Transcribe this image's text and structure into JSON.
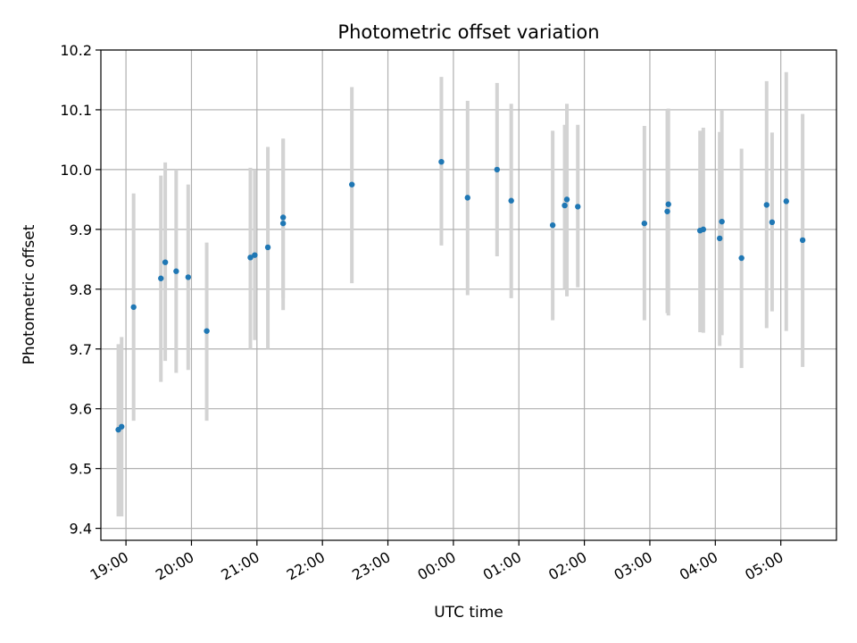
{
  "chart_data": {
    "type": "scatter",
    "title": "Photometric offset variation",
    "xlabel": "UTC time",
    "ylabel": "Photometric offset",
    "ylim": [
      9.38,
      10.2
    ],
    "xlim": [
      "18:37",
      "05:51"
    ],
    "yticks": [
      "9.4",
      "9.5",
      "9.6",
      "9.7",
      "9.8",
      "9.9",
      "10.0",
      "10.1",
      "10.2"
    ],
    "xticks": [
      "19:00",
      "20:00",
      "21:00",
      "22:00",
      "23:00",
      "00:00",
      "01:00",
      "02:00",
      "03:00",
      "04:00",
      "05:00"
    ],
    "grid": true,
    "marker_color": "#1f77b4",
    "errorbar_color": "#d3d3d3",
    "points": [
      {
        "x": "18:53",
        "y": 9.565,
        "ylow": 9.42,
        "yhigh": 9.708
      },
      {
        "x": "18:56",
        "y": 9.57,
        "ylow": 9.42,
        "yhigh": 9.72
      },
      {
        "x": "19:07",
        "y": 9.77,
        "ylow": 9.58,
        "yhigh": 9.96
      },
      {
        "x": "19:32",
        "y": 9.818,
        "ylow": 9.645,
        "yhigh": 9.99
      },
      {
        "x": "19:36",
        "y": 9.845,
        "ylow": 9.68,
        "yhigh": 10.012
      },
      {
        "x": "19:46",
        "y": 9.83,
        "ylow": 9.66,
        "yhigh": 10.0
      },
      {
        "x": "19:57",
        "y": 9.82,
        "ylow": 9.665,
        "yhigh": 9.975
      },
      {
        "x": "20:14",
        "y": 9.73,
        "ylow": 9.58,
        "yhigh": 9.878
      },
      {
        "x": "20:54",
        "y": 9.853,
        "ylow": 9.7,
        "yhigh": 10.003
      },
      {
        "x": "20:58",
        "y": 9.857,
        "ylow": 9.715,
        "yhigh": 10.0
      },
      {
        "x": "21:10",
        "y": 9.87,
        "ylow": 9.7,
        "yhigh": 10.038
      },
      {
        "x": "21:24",
        "y": 9.91,
        "ylow": 9.765,
        "yhigh": 10.05
      },
      {
        "x": "21:24",
        "y": 9.92,
        "ylow": 9.785,
        "yhigh": 10.052
      },
      {
        "x": "22:27",
        "y": 9.975,
        "ylow": 9.81,
        "yhigh": 10.138
      },
      {
        "x": "23:49",
        "y": 10.013,
        "ylow": 9.873,
        "yhigh": 10.155
      },
      {
        "x": "00:13",
        "y": 9.953,
        "ylow": 9.79,
        "yhigh": 10.115
      },
      {
        "x": "00:40",
        "y": 10.0,
        "ylow": 9.855,
        "yhigh": 10.145
      },
      {
        "x": "00:53",
        "y": 9.948,
        "ylow": 9.785,
        "yhigh": 10.11
      },
      {
        "x": "01:31",
        "y": 9.907,
        "ylow": 9.748,
        "yhigh": 10.065
      },
      {
        "x": "01:42",
        "y": 9.94,
        "ylow": 9.8,
        "yhigh": 10.075
      },
      {
        "x": "01:44",
        "y": 9.95,
        "ylow": 9.788,
        "yhigh": 10.11
      },
      {
        "x": "01:54",
        "y": 9.938,
        "ylow": 9.803,
        "yhigh": 10.075
      },
      {
        "x": "02:55",
        "y": 9.91,
        "ylow": 9.748,
        "yhigh": 10.073
      },
      {
        "x": "03:16",
        "y": 9.93,
        "ylow": 9.76,
        "yhigh": 10.1
      },
      {
        "x": "03:17",
        "y": 9.942,
        "ylow": 9.756,
        "yhigh": 10.102
      },
      {
        "x": "03:46",
        "y": 9.898,
        "ylow": 9.728,
        "yhigh": 10.065
      },
      {
        "x": "03:49",
        "y": 9.9,
        "ylow": 9.727,
        "yhigh": 10.07
      },
      {
        "x": "04:04",
        "y": 9.885,
        "ylow": 9.705,
        "yhigh": 10.063
      },
      {
        "x": "04:06",
        "y": 9.913,
        "ylow": 9.723,
        "yhigh": 10.1
      },
      {
        "x": "04:24",
        "y": 9.852,
        "ylow": 9.668,
        "yhigh": 10.035
      },
      {
        "x": "04:47",
        "y": 9.941,
        "ylow": 9.735,
        "yhigh": 10.148
      },
      {
        "x": "04:52",
        "y": 9.912,
        "ylow": 9.763,
        "yhigh": 10.062
      },
      {
        "x": "05:05",
        "y": 9.947,
        "ylow": 9.73,
        "yhigh": 10.163
      },
      {
        "x": "05:20",
        "y": 9.882,
        "ylow": 9.67,
        "yhigh": 10.093
      }
    ]
  }
}
